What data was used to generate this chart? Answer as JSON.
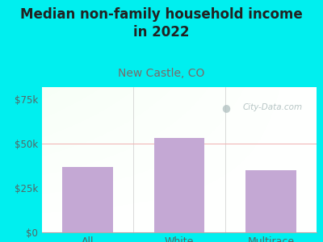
{
  "categories": [
    "All",
    "White",
    "Multirace"
  ],
  "values": [
    37000,
    53500,
    35000
  ],
  "bar_color": "#c4a8d4",
  "figure_bg": "#00EFEF",
  "title": "Median non-family household income\nin 2022",
  "subtitle": "New Castle, CO",
  "title_color": "#222222",
  "subtitle_color": "#7a6a6a",
  "tick_label_color": "#556666",
  "ytick_labels": [
    "$0",
    "$25k",
    "$50k",
    "$75k"
  ],
  "ytick_values": [
    0,
    25000,
    50000,
    75000
  ],
  "ylim": [
    0,
    82000
  ],
  "hline_y": 50000,
  "hline_color": "#f0b0b0",
  "watermark": "City-Data.com",
  "watermark_color": "#aabbbb",
  "bar_width": 0.55,
  "title_fontsize": 12,
  "subtitle_fontsize": 10
}
